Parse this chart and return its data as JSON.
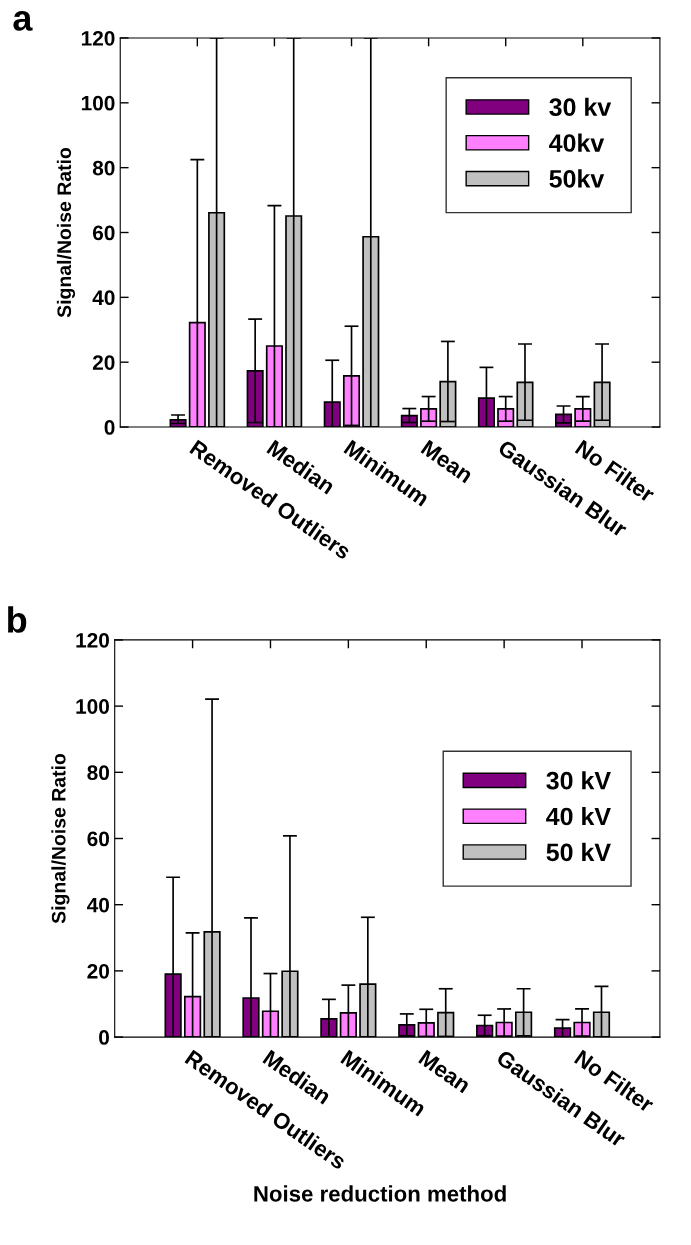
{
  "chart_data": [
    {
      "type": "bar",
      "title": "a",
      "ylabel": "Signal/Noise Ratio",
      "categories": [
        "Removed Outliers",
        "Median",
        "Minimum",
        "Mean",
        "Gaussian Blur",
        "No Filter"
      ],
      "ylim": [
        0,
        120
      ],
      "yticks": [
        0,
        20,
        40,
        60,
        80,
        100,
        120
      ],
      "legend": "top right",
      "grid": false,
      "series": [
        {
          "name": "30 kv",
          "color": "#800080",
          "values": [
            2.2,
            17.3,
            7.7,
            3.5,
            8.9,
            3.9
          ],
          "errors": [
            [
              1.1,
              3.7
            ],
            [
              1.4,
              33.3
            ],
            [
              0,
              20.6
            ],
            [
              1.4,
              5.7
            ],
            [
              0,
              18.4
            ],
            [
              1.3,
              6.5
            ]
          ]
        },
        {
          "name": "40kv",
          "color": "#ff80ff",
          "values": [
            32.2,
            25.0,
            15.8,
            5.6,
            5.6,
            5.6
          ],
          "errors": [
            [
              0,
              82.5
            ],
            [
              0,
              68.3
            ],
            [
              0.5,
              31.1
            ],
            [
              1.8,
              9.4
            ],
            [
              1.8,
              9.4
            ],
            [
              1.8,
              9.4
            ]
          ]
        },
        {
          "name": "50kv",
          "color": "#c0c0c0",
          "values": [
            66.1,
            65.1,
            58.7,
            14.0,
            13.8,
            13.8
          ],
          "errors": [
            [
              0,
              120
            ],
            [
              0,
              120
            ],
            [
              0,
              120
            ],
            [
              1.7,
              26.4
            ],
            [
              2.1,
              25.6
            ],
            [
              2.1,
              25.6
            ]
          ]
        }
      ]
    },
    {
      "type": "bar",
      "title": "b",
      "ylabel": "Signal/Noise Ratio",
      "xlabel": "Noise reduction method",
      "categories": [
        "Removed Outliers",
        "Median",
        "Minimum",
        "Mean",
        "Gaussian Blur",
        "No Filter"
      ],
      "ylim": [
        0,
        120
      ],
      "yticks": [
        0,
        20,
        40,
        60,
        80,
        100,
        120
      ],
      "legend": "right",
      "grid": false,
      "series": [
        {
          "name": "30 kV",
          "color": "#800080",
          "values": [
            19.0,
            11.8,
            5.5,
            3.7,
            3.5,
            2.7
          ],
          "errors": [
            [
              0,
              48.3
            ],
            [
              0,
              36.0
            ],
            [
              0,
              11.4
            ],
            [
              0.4,
              7.0
            ],
            [
              0.4,
              6.6
            ],
            [
              0.1,
              5.3
            ]
          ]
        },
        {
          "name": "40 kV",
          "color": "#ff80ff",
          "values": [
            12.2,
            7.8,
            7.3,
            4.3,
            4.4,
            4.4
          ],
          "errors": [
            [
              0,
              31.5
            ],
            [
              0,
              19.2
            ],
            [
              0,
              15.7
            ],
            [
              0.2,
              8.4
            ],
            [
              0.3,
              8.5
            ],
            [
              0.3,
              8.5
            ]
          ]
        },
        {
          "name": "50 kV",
          "color": "#c0c0c0",
          "values": [
            31.8,
            19.9,
            16.0,
            7.4,
            7.5,
            7.5
          ],
          "errors": [
            [
              0,
              102.1
            ],
            [
              0,
              60.8
            ],
            [
              0,
              36.2
            ],
            [
              0.2,
              14.6
            ],
            [
              0.4,
              14.6
            ],
            [
              0,
              15.3
            ]
          ]
        }
      ]
    }
  ]
}
